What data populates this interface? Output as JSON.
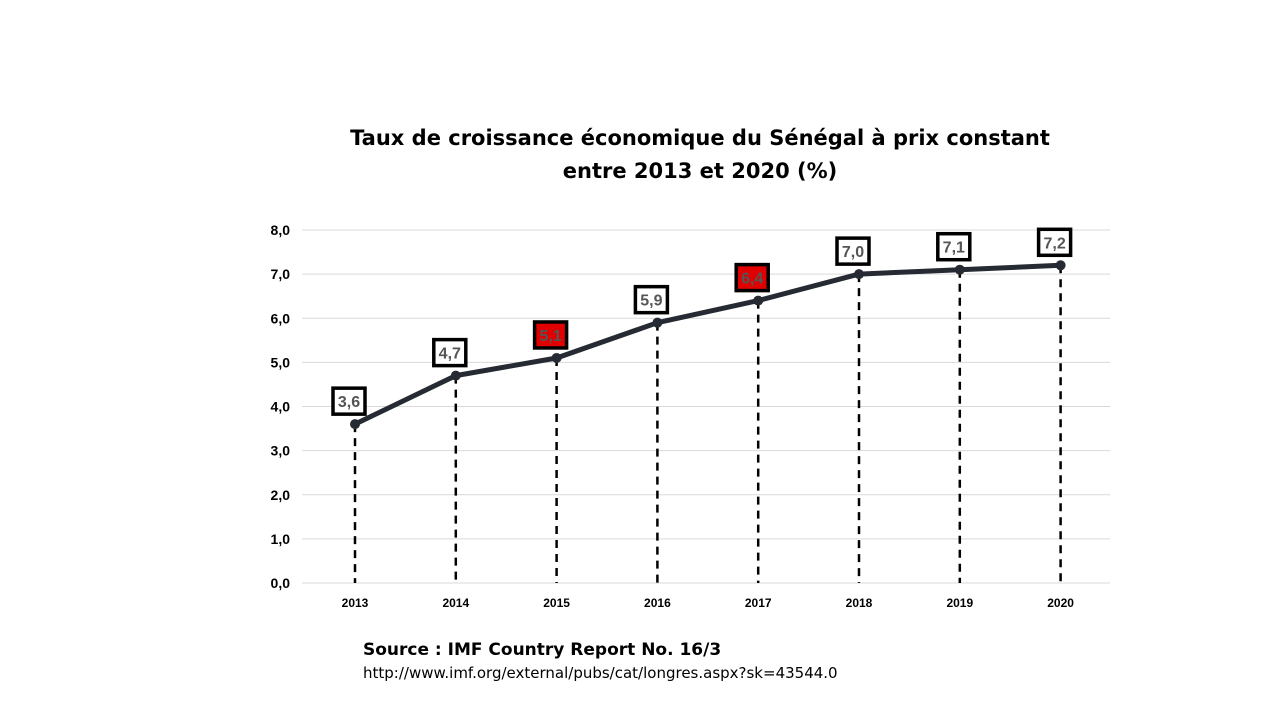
{
  "chart_data": {
    "type": "line",
    "title_line1": "Taux de croissance économique du Sénégal à prix constant",
    "title_line2": "entre 2013 et 2020 (%)",
    "categories": [
      "2013",
      "2014",
      "2015",
      "2016",
      "2017",
      "2018",
      "2019",
      "2020"
    ],
    "values": [
      3.6,
      4.7,
      5.1,
      5.9,
      6.4,
      7.0,
      7.1,
      7.2
    ],
    "data_labels": [
      "3,6",
      "4,7",
      "5,1",
      "5,9",
      "6,4",
      "7,0",
      "7,1",
      "7,2"
    ],
    "highlighted_labels": [
      "2015",
      "2017"
    ],
    "ylim": [
      0,
      8
    ],
    "y_ticks": [
      {
        "value": 0,
        "label": "0,0"
      },
      {
        "value": 1,
        "label": "1,0"
      },
      {
        "value": 2,
        "label": "2,0"
      },
      {
        "value": 3,
        "label": "3,0"
      },
      {
        "value": 4,
        "label": "4,0"
      },
      {
        "value": 5,
        "label": "5,0"
      },
      {
        "value": 6,
        "label": "6,0"
      },
      {
        "value": 7,
        "label": "7,0"
      },
      {
        "value": 8,
        "label": "8,0"
      }
    ],
    "grid": true,
    "drop_lines": true,
    "legend": "none",
    "colors": {
      "line": "#262a33",
      "label_border": "#000000",
      "label_fill": "#ffffff",
      "highlight_fill": "#e00000",
      "label_text": "#555555",
      "gridline": "#d9d9d9"
    }
  },
  "source": {
    "label": "Source : IMF Country Report No. 16/3",
    "url": "http://www.imf.org/external/pubs/cat/longres.aspx?sk=43544.0"
  }
}
